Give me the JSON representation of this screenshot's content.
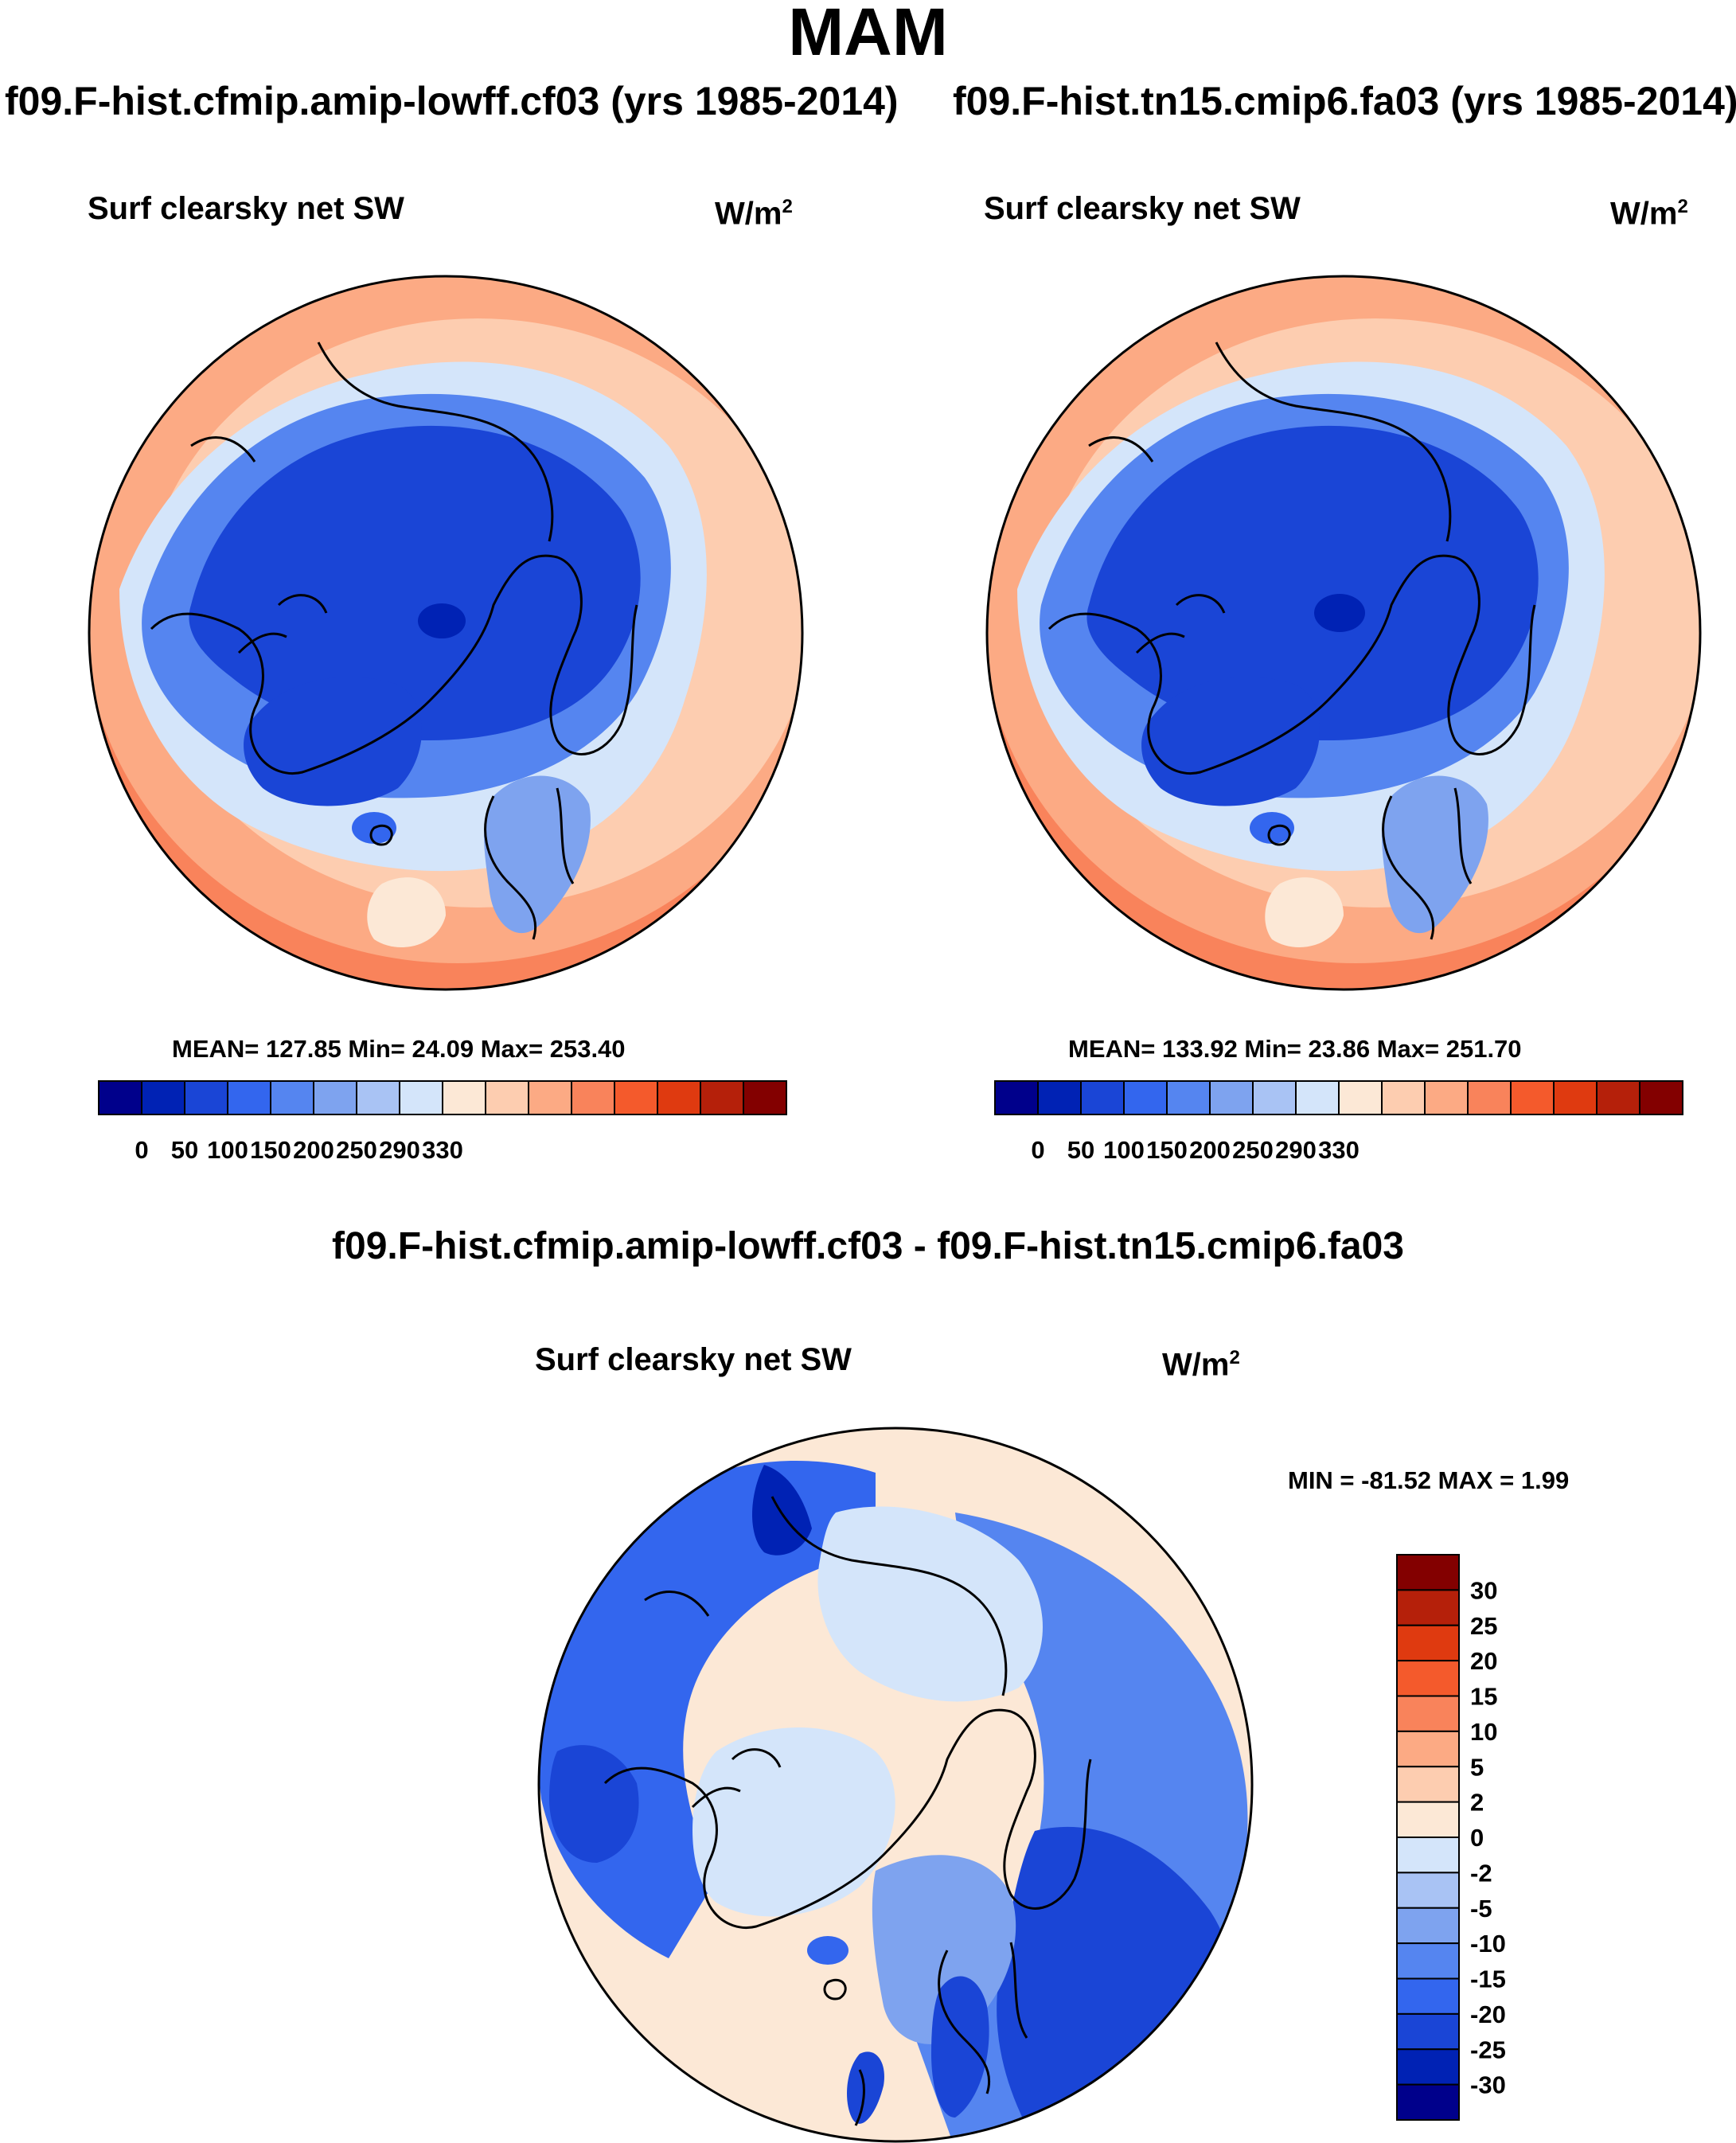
{
  "title": "MAM",
  "panels": [
    {
      "case_title": "f09.F-hist.cfmip.amip-lowff.cf03 (yrs 1985-2014)",
      "variable": "Surf clearsky net SW",
      "units": "W/m",
      "units_exp": "2",
      "stats": "MEAN= 127.85  Min=  24.09  Max= 253.40"
    },
    {
      "case_title": "f09.F-hist.tn15.cmip6.fa03 (yrs 1985-2014)",
      "variable": "Surf clearsky net SW",
      "units": "W/m",
      "units_exp": "2",
      "stats": "MEAN= 133.92  Min=  23.86  Max= 251.70"
    }
  ],
  "colorbar": {
    "labels": [
      "0",
      "50",
      "100",
      "150",
      "200",
      "250",
      "290",
      "330"
    ],
    "colors": [
      "#00008b",
      "#0022b4",
      "#1a45d6",
      "#3366ee",
      "#5585f0",
      "#7ea3ef",
      "#a9c3f4",
      "#d4e5fa",
      "#fce8d6",
      "#fdcdb0",
      "#fcaa84",
      "#f9835b",
      "#f45a2c",
      "#df3a10",
      "#b5200a",
      "#830000"
    ]
  },
  "difference": {
    "title": "f09.F-hist.cfmip.amip-lowff.cf03 - f09.F-hist.tn15.cmip6.fa03",
    "variable": "Surf clearsky net SW",
    "units": "W/m",
    "units_exp": "2",
    "stats": "MIN = -81.52 MAX =   1.99",
    "colorbar_labels": [
      "30",
      "25",
      "20",
      "15",
      "10",
      "5",
      "2",
      "0",
      "-2",
      "-5",
      "-10",
      "-15",
      "-20",
      "-25",
      "-30"
    ],
    "colorbar_colors": [
      "#830000",
      "#b5200a",
      "#df3a10",
      "#f45a2c",
      "#f9835b",
      "#fcaa84",
      "#fdcdb0",
      "#fce8d6",
      "#d4e5fa",
      "#a9c3f4",
      "#7ea3ef",
      "#5585f0",
      "#3366ee",
      "#1a45d6",
      "#0022b4",
      "#00008b"
    ]
  },
  "map_colors": {
    "deep": "#1a45d6",
    "mid": "#3366ee",
    "light_blue": "#d4e5fa",
    "pale_orange": "#fce8d6",
    "orange": "#fcaa84",
    "orange2": "#f9835b",
    "coast": "#000000"
  }
}
